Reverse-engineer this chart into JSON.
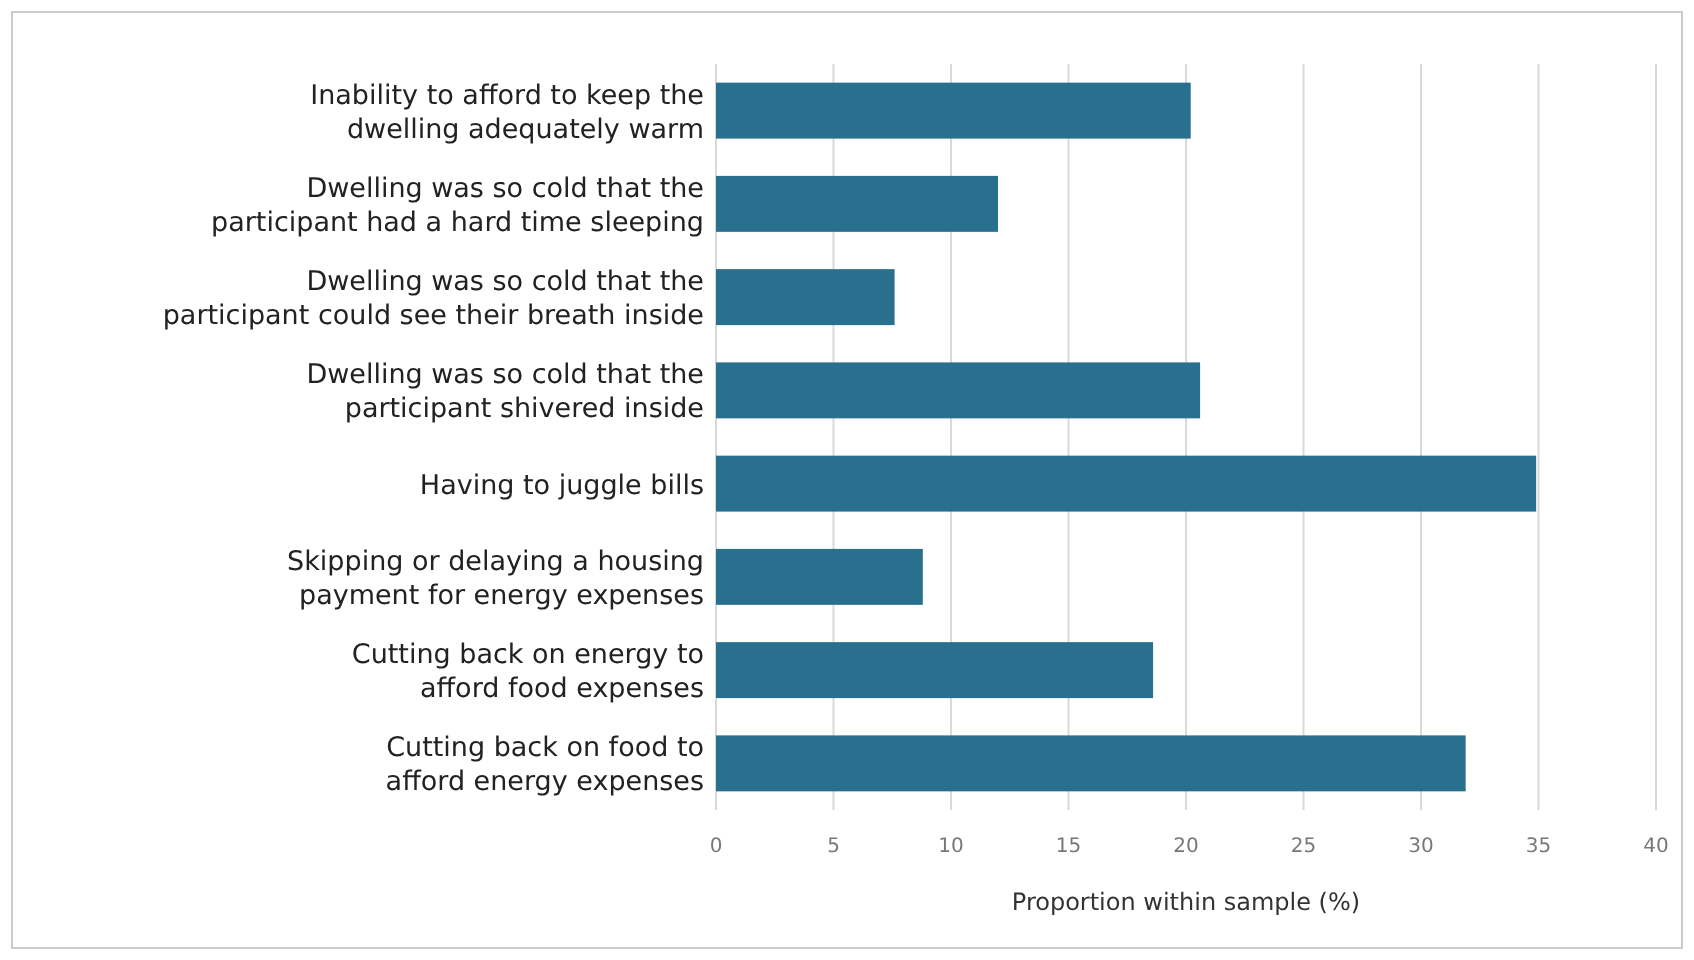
{
  "chart_data": {
    "type": "bar",
    "orientation": "horizontal",
    "xlabel": "Proportion within sample (%)",
    "categories": [
      "Inability to afford to keep the\ndwelling adequately warm",
      "Dwelling was so cold that the\nparticipant had a hard time sleeping",
      "Dwelling was so cold that the\nparticipant could see their breath inside",
      "Dwelling was so cold that the\nparticipant shivered inside",
      "Having to juggle bills",
      "Skipping or delaying a housing\npayment for energy expenses",
      "Cutting back on energy to\nafford food expenses",
      "Cutting back on food to\nafford energy expenses"
    ],
    "values": [
      20.2,
      12.0,
      7.6,
      20.6,
      34.9,
      8.8,
      18.6,
      31.9
    ],
    "color": "#29708f",
    "xlim": [
      0,
      40
    ],
    "xticks": [
      0,
      5,
      10,
      15,
      20,
      25,
      30,
      35,
      40
    ],
    "grid": "x"
  }
}
